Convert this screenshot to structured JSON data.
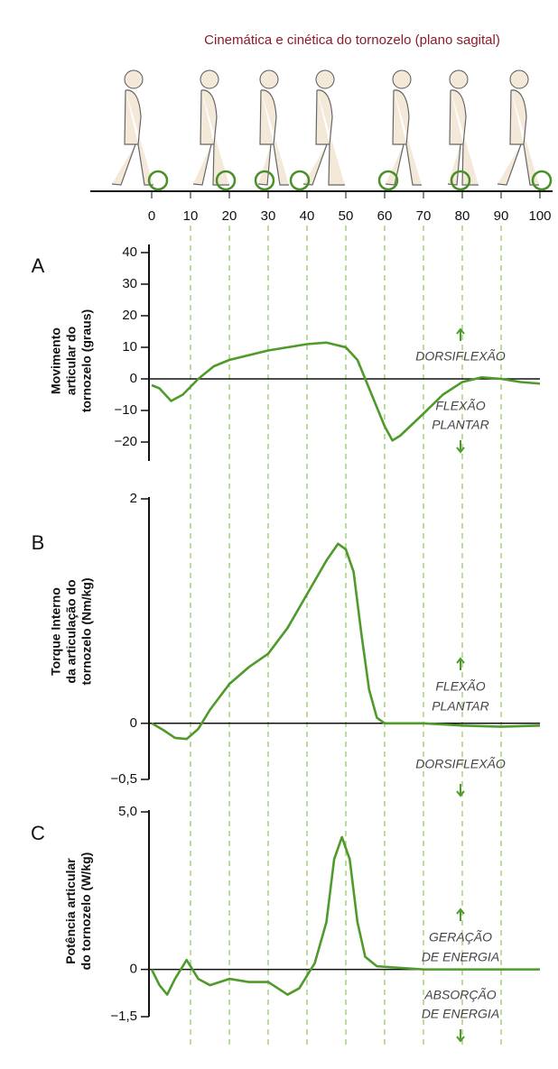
{
  "title": "Cinemática e cinética do tornozelo (plano sagital)",
  "chart_data": [
    {
      "type": "line",
      "panel": "A",
      "ylabel": [
        "Movimento",
        "articular do",
        "tornozelo (graus)"
      ],
      "xlim": [
        0,
        100
      ],
      "xticks": [
        0,
        10,
        20,
        30,
        40,
        50,
        60,
        70,
        80,
        90,
        100
      ],
      "x": [
        0,
        2,
        5,
        8,
        12,
        16,
        20,
        30,
        40,
        45,
        50,
        53,
        56,
        60,
        62,
        64,
        70,
        75,
        80,
        85,
        90,
        95,
        100
      ],
      "values": [
        -2,
        -3,
        -7,
        -5,
        0,
        4,
        6,
        9,
        11,
        11.5,
        10,
        6,
        -3,
        -15,
        -19.5,
        -18,
        -11,
        -5,
        -1,
        0.5,
        0,
        -1,
        -1.5
      ],
      "color": "#4e9a2a",
      "ylim": [
        -26,
        42
      ],
      "yticks": [
        40,
        30,
        20,
        10,
        0,
        {
          "value": -10,
          "label": "−10"
        },
        {
          "value": -20,
          "label": "−20"
        }
      ],
      "annotations": [
        "DORSIFLEXÃO",
        "FLEXÃO",
        "PLANTAR"
      ]
    },
    {
      "type": "line",
      "panel": "B",
      "ylabel": [
        "Torque Interno",
        "da articulação do",
        "tornozelo (Nm/kg)"
      ],
      "xlim": [
        0,
        100
      ],
      "x": [
        0,
        3,
        6,
        9,
        12,
        15,
        20,
        25,
        30,
        35,
        40,
        45,
        48,
        50,
        52,
        54,
        56,
        58,
        60,
        70,
        80,
        90,
        100
      ],
      "values": [
        0,
        -0.06,
        -0.13,
        -0.14,
        -0.05,
        0.12,
        0.35,
        0.5,
        0.62,
        0.85,
        1.15,
        1.45,
        1.6,
        1.55,
        1.35,
        0.8,
        0.3,
        0.05,
        0,
        0,
        -0.02,
        -0.03,
        -0.02
      ],
      "color": "#4e9a2a",
      "ylim": [
        -0.5,
        2
      ],
      "yticks": [
        2,
        0,
        {
          "value": -0.5,
          "label": "−0,5"
        }
      ],
      "annotations": [
        "FLEXÃO",
        "PLANTAR",
        "DORSIFLEXÃO"
      ]
    },
    {
      "type": "line",
      "panel": "C",
      "ylabel": [
        "Potência articular",
        "do tornozelo (W/kg)"
      ],
      "xlim": [
        0,
        100
      ],
      "x": [
        0,
        2,
        4,
        6,
        9,
        12,
        15,
        20,
        25,
        30,
        35,
        38,
        42,
        45,
        47,
        49,
        51,
        53,
        55,
        58,
        70,
        100
      ],
      "values": [
        0,
        -0.5,
        -0.8,
        -0.3,
        0.3,
        -0.3,
        -0.5,
        -0.3,
        -0.4,
        -0.4,
        -0.8,
        -0.6,
        0.2,
        1.5,
        3.5,
        4.2,
        3.5,
        1.5,
        0.4,
        0.1,
        0,
        0
      ],
      "color": "#4e9a2a",
      "ylim": [
        -1.5,
        5
      ],
      "yticks": [
        {
          "value": 5,
          "label": "5,0"
        },
        0,
        {
          "value": -1.5,
          "label": "−1,5"
        }
      ],
      "annotations": [
        "GERAÇÃO",
        "DE ENERGIA",
        "ABSORÇÃO",
        "DE ENERGIA"
      ]
    }
  ]
}
